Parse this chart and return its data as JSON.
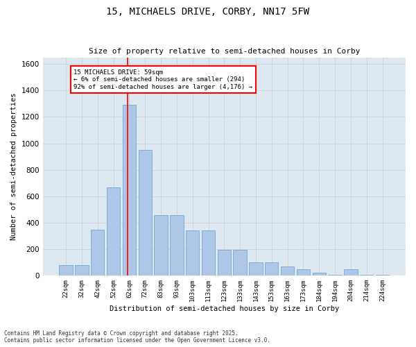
{
  "title1": "15, MICHAELS DRIVE, CORBY, NN17 5FW",
  "title2": "Size of property relative to semi-detached houses in Corby",
  "xlabel": "Distribution of semi-detached houses by size in Corby",
  "ylabel": "Number of semi-detached properties",
  "categories": [
    "22sqm",
    "32sqm",
    "42sqm",
    "52sqm",
    "62sqm",
    "72sqm",
    "83sqm",
    "93sqm",
    "103sqm",
    "113sqm",
    "123sqm",
    "133sqm",
    "143sqm",
    "153sqm",
    "163sqm",
    "173sqm",
    "184sqm",
    "194sqm",
    "204sqm",
    "214sqm",
    "224sqm"
  ],
  "values": [
    80,
    80,
    350,
    670,
    1290,
    950,
    460,
    460,
    340,
    340,
    195,
    195,
    100,
    100,
    70,
    50,
    25,
    5,
    50,
    5,
    5
  ],
  "bar_color": "#aec6e8",
  "bar_edge_color": "#7bafd4",
  "vline_color": "red",
  "vline_x": 3.9,
  "annotation_title": "15 MICHAELS DRIVE: 59sqm",
  "annotation_line1": "← 6% of semi-detached houses are smaller (294)",
  "annotation_line2": "92% of semi-detached houses are larger (4,176) →",
  "annotation_box_edge": "red",
  "ylim": [
    0,
    1650
  ],
  "yticks": [
    0,
    200,
    400,
    600,
    800,
    1000,
    1200,
    1400,
    1600
  ],
  "grid_color": "#cccccc",
  "bg_color": "#dde8f0",
  "footnote1": "Contains HM Land Registry data © Crown copyright and database right 2025.",
  "footnote2": "Contains public sector information licensed under the Open Government Licence v3.0."
}
